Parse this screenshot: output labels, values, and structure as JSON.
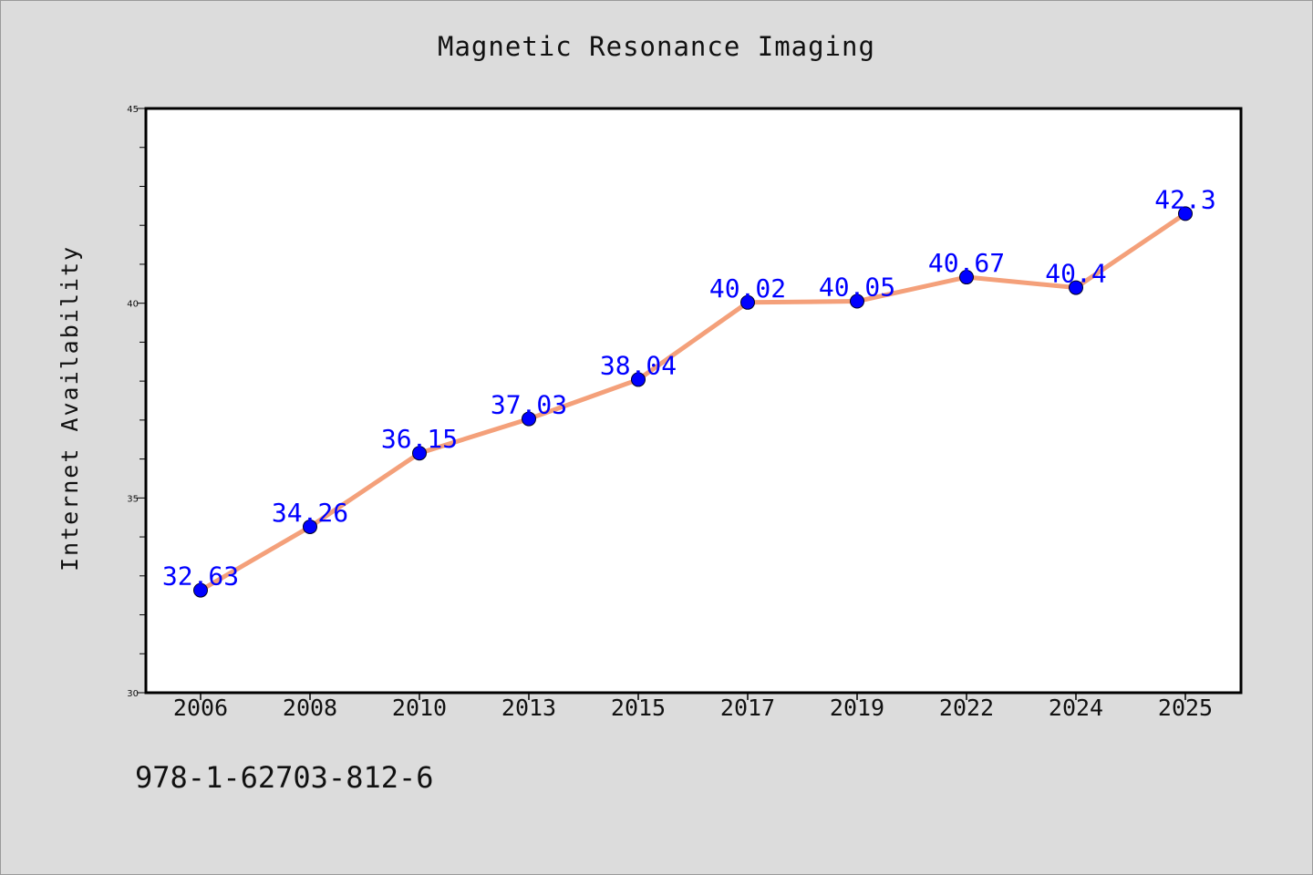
{
  "title": "Magnetic Resonance Imaging",
  "footer_text": "978-1-62703-812-6",
  "colors": {
    "background": "#dcdcdc",
    "plot_background": "#ffffff",
    "line": "#f4a07a",
    "marker": "#0000ff",
    "data_label": "#0000ff"
  },
  "chart_data": {
    "type": "line",
    "title": "Magnetic Resonance Imaging",
    "xlabel": "",
    "ylabel": "Internet Availability",
    "categories": [
      "2006",
      "2008",
      "2010",
      "2013",
      "2015",
      "2017",
      "2019",
      "2022",
      "2024",
      "2025"
    ],
    "values": [
      32.63,
      34.26,
      36.15,
      37.03,
      38.04,
      40.02,
      40.05,
      40.67,
      40.4,
      42.3
    ],
    "data_labels": [
      "32.63",
      "34.26",
      "36.15",
      "37.03",
      "38.04",
      "40.02",
      "40.05",
      "40.67",
      "40.4",
      "42.3"
    ],
    "ylim": [
      30,
      45
    ],
    "yticks": [
      30,
      35,
      40,
      45
    ],
    "grid": false,
    "legend": "none",
    "markers": true
  }
}
